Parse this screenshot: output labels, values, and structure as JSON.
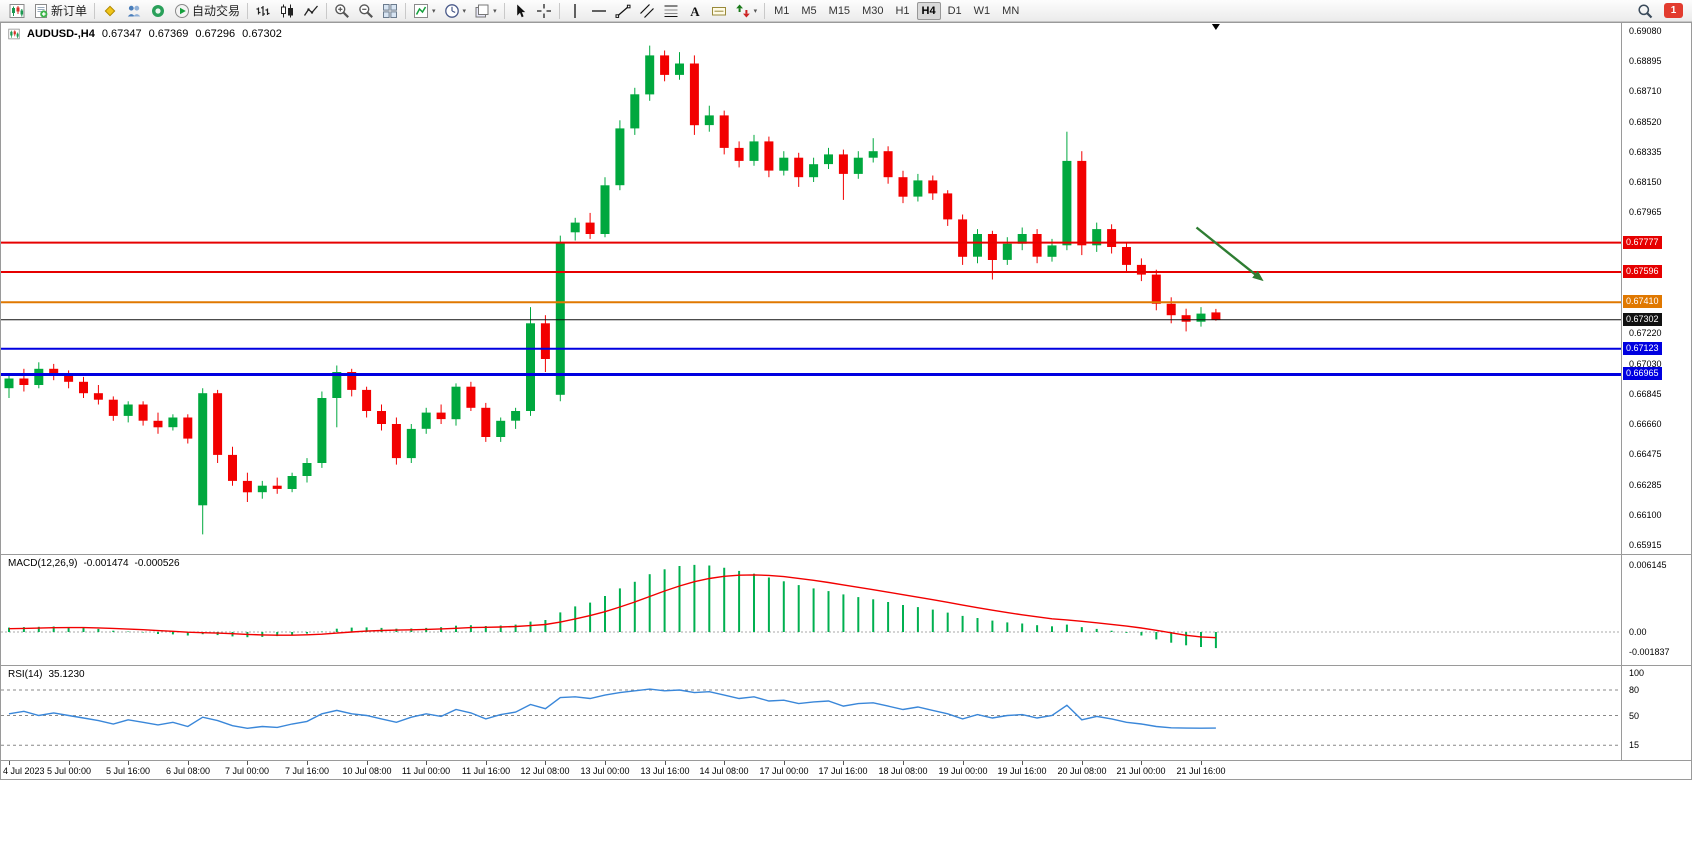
{
  "toolbar": {
    "left_buttons": [
      {
        "name": "new-chart-button",
        "icon": "chart-candle"
      },
      {
        "name": "new-order-button",
        "icon": "order",
        "label": "新订单"
      },
      {
        "separator": true
      },
      {
        "name": "market-watch-button",
        "icon": "diamond"
      },
      {
        "name": "data-window-button",
        "icon": "people"
      },
      {
        "name": "terminal-button",
        "icon": "headset"
      },
      {
        "name": "autotrading-button",
        "icon": "play",
        "label": "自动交易"
      },
      {
        "separator": true
      },
      {
        "name": "bar-chart-button",
        "icon": "bars"
      },
      {
        "name": "candlestick-chart-button",
        "icon": "candles"
      },
      {
        "name": "line-chart-button",
        "icon": "linechart"
      },
      {
        "separator": true
      },
      {
        "name": "zoom-in-button",
        "icon": "zoom-in"
      },
      {
        "name": "zoom-out-button",
        "icon": "zoom-out"
      },
      {
        "name": "tile-windows-button",
        "icon": "tile"
      },
      {
        "separator": true
      },
      {
        "name": "indicators-button",
        "icon": "indicator",
        "dropdown": true
      },
      {
        "name": "periods-button",
        "icon": "clock",
        "dropdown": true
      },
      {
        "name": "templates-button",
        "icon": "template",
        "dropdown": true
      },
      {
        "separator": true
      },
      {
        "name": "cursor-button",
        "icon": "cursor"
      },
      {
        "name": "crosshair-button",
        "icon": "crosshair"
      },
      {
        "separator": true
      },
      {
        "name": "vertical-line-button",
        "icon": "vline"
      },
      {
        "name": "horizontal-line-button",
        "icon": "hline"
      },
      {
        "name": "trendline-button",
        "icon": "trendline"
      },
      {
        "name": "equidistant-channel-button",
        "icon": "channel"
      },
      {
        "name": "fibonacci-retracement-button",
        "icon": "fibo"
      },
      {
        "name": "text-button",
        "icon": "textA"
      },
      {
        "name": "text-label-button",
        "icon": "labeltag"
      },
      {
        "name": "arrows-button",
        "icon": "arrowsobj",
        "dropdown": true
      },
      {
        "separator": true
      }
    ],
    "timeframes": [
      {
        "label": "M1"
      },
      {
        "label": "M5"
      },
      {
        "label": "M15"
      },
      {
        "label": "M30"
      },
      {
        "label": "H1"
      },
      {
        "label": "H4",
        "active": true
      },
      {
        "label": "D1"
      },
      {
        "label": "W1"
      },
      {
        "label": "MN"
      }
    ],
    "right_buttons": [
      {
        "name": "search-button",
        "icon": "search"
      }
    ],
    "notification_count": "1"
  },
  "chart": {
    "symbol_period": "AUDUSD-,H4",
    "ohlc": {
      "open": "0.67347",
      "high": "0.67369",
      "low": "0.67296",
      "close": "0.67302"
    }
  },
  "indicators": {
    "macd_name": "MACD(12,26,9)",
    "macd_main": "-0.001474",
    "macd_signal": "-0.000526",
    "rsi_name": "RSI(14)",
    "rsi_value": "35.1230"
  },
  "chart_data": {
    "type": "candlestick",
    "title": "AUDUSD-,H4",
    "symbol": "AUDUSD-",
    "timeframe": "H4",
    "up_color": "#00a83e",
    "down_color": "#f20000",
    "price_range": {
      "top": 0.6908,
      "bottom": 0.65915
    },
    "price_axis_labels": [
      0.6908,
      0.68895,
      0.6871,
      0.6852,
      0.68335,
      0.6815,
      0.67965,
      0.6722,
      0.6703,
      0.66845,
      0.6666,
      0.66475,
      0.66285,
      0.661,
      0.65915
    ],
    "axis_badges": [
      {
        "text": "0.67777",
        "color": "#e60000"
      },
      {
        "text": "0.67596",
        "color": "#e60000"
      },
      {
        "text": "0.67410",
        "color": "#e07800"
      },
      {
        "text": "0.67302",
        "color": "#111111"
      },
      {
        "text": "0.67123",
        "color": "#0000e0"
      },
      {
        "text": "0.66965",
        "color": "#0000e0"
      }
    ],
    "hlines": [
      {
        "price": 0.67777,
        "color": "#e60000",
        "width": 2
      },
      {
        "price": 0.67596,
        "color": "#e60000",
        "width": 2
      },
      {
        "price": 0.6741,
        "color": "#e07800",
        "width": 2
      },
      {
        "price": 0.67123,
        "color": "#0000e0",
        "width": 2
      },
      {
        "price": 0.66965,
        "color": "#0000e0",
        "width": 3
      }
    ],
    "current_price": {
      "value": 0.67302,
      "color": "#111111"
    },
    "arrow_object": {
      "from_bar": 79.7,
      "from_price": 0.6787,
      "to_bar": 84.2,
      "to_price": 0.6754,
      "color": "#2e7d32"
    },
    "shift_marker_bar": 81,
    "time_labels": [
      "4 Jul 2023",
      "5 Jul 00:00",
      "5 Jul 16:00",
      "6 Jul 08:00",
      "7 Jul 00:00",
      "7 Jul 16:00",
      "10 Jul 08:00",
      "11 Jul 00:00",
      "11 Jul 16:00",
      "12 Jul 08:00",
      "13 Jul 00:00",
      "13 Jul 16:00",
      "14 Jul 08:00",
      "17 Jul 00:00",
      "17 Jul 16:00",
      "18 Jul 08:00",
      "19 Jul 00:00",
      "19 Jul 16:00",
      "20 Jul 08:00",
      "21 Jul 00:00",
      "21 Jul 16:00"
    ],
    "time_label_step": 4,
    "candles": [
      [
        0.6688,
        0.6696,
        0.6682,
        0.6694
      ],
      [
        0.6694,
        0.67,
        0.6686,
        0.669
      ],
      [
        0.669,
        0.6704,
        0.6688,
        0.67
      ],
      [
        0.67,
        0.6703,
        0.6693,
        0.6696
      ],
      [
        0.6696,
        0.6699,
        0.6688,
        0.6692
      ],
      [
        0.6692,
        0.6695,
        0.6682,
        0.6685
      ],
      [
        0.6685,
        0.669,
        0.6678,
        0.6681
      ],
      [
        0.6681,
        0.6683,
        0.6668,
        0.6671
      ],
      [
        0.6671,
        0.668,
        0.6667,
        0.6678
      ],
      [
        0.6678,
        0.668,
        0.6665,
        0.6668
      ],
      [
        0.6668,
        0.6673,
        0.666,
        0.6664
      ],
      [
        0.6664,
        0.6672,
        0.6662,
        0.667
      ],
      [
        0.667,
        0.6672,
        0.6654,
        0.6657
      ],
      [
        0.6616,
        0.6688,
        0.6598,
        0.6685
      ],
      [
        0.6685,
        0.6687,
        0.6642,
        0.6647
      ],
      [
        0.6647,
        0.6652,
        0.6628,
        0.6631
      ],
      [
        0.6631,
        0.6636,
        0.6618,
        0.6624
      ],
      [
        0.6624,
        0.6631,
        0.662,
        0.6628
      ],
      [
        0.6628,
        0.6633,
        0.6623,
        0.6626
      ],
      [
        0.6626,
        0.6636,
        0.6624,
        0.6634
      ],
      [
        0.6634,
        0.6645,
        0.663,
        0.6642
      ],
      [
        0.6642,
        0.6686,
        0.6639,
        0.6682
      ],
      [
        0.6682,
        0.6702,
        0.6664,
        0.6698
      ],
      [
        0.6698,
        0.67,
        0.6683,
        0.6687
      ],
      [
        0.6687,
        0.6689,
        0.667,
        0.6674
      ],
      [
        0.6674,
        0.6678,
        0.6662,
        0.6666
      ],
      [
        0.6666,
        0.667,
        0.6641,
        0.6645
      ],
      [
        0.6645,
        0.6666,
        0.6642,
        0.6663
      ],
      [
        0.6663,
        0.6676,
        0.666,
        0.6673
      ],
      [
        0.6673,
        0.6678,
        0.6666,
        0.6669
      ],
      [
        0.6669,
        0.6691,
        0.6665,
        0.6689
      ],
      [
        0.6689,
        0.6692,
        0.6674,
        0.6676
      ],
      [
        0.6676,
        0.6679,
        0.6655,
        0.6658
      ],
      [
        0.6658,
        0.667,
        0.6655,
        0.6668
      ],
      [
        0.6668,
        0.6676,
        0.6663,
        0.6674
      ],
      [
        0.6674,
        0.6738,
        0.6671,
        0.6728
      ],
      [
        0.6728,
        0.6733,
        0.6698,
        0.6706
      ],
      [
        0.6684,
        0.6782,
        0.668,
        0.6778
      ],
      [
        0.6784,
        0.6793,
        0.6779,
        0.679
      ],
      [
        0.679,
        0.6796,
        0.678,
        0.6783
      ],
      [
        0.6783,
        0.6818,
        0.6781,
        0.6813
      ],
      [
        0.6813,
        0.6853,
        0.681,
        0.6848
      ],
      [
        0.6848,
        0.6873,
        0.6844,
        0.6869
      ],
      [
        0.6869,
        0.6899,
        0.6865,
        0.6893
      ],
      [
        0.6893,
        0.6896,
        0.6877,
        0.6881
      ],
      [
        0.6881,
        0.6895,
        0.6878,
        0.6888
      ],
      [
        0.6888,
        0.6893,
        0.6844,
        0.685
      ],
      [
        0.685,
        0.6862,
        0.6846,
        0.6856
      ],
      [
        0.6856,
        0.6859,
        0.6832,
        0.6836
      ],
      [
        0.6836,
        0.684,
        0.6824,
        0.6828
      ],
      [
        0.6828,
        0.6844,
        0.6825,
        0.684
      ],
      [
        0.684,
        0.6843,
        0.6818,
        0.6822
      ],
      [
        0.6822,
        0.6834,
        0.6819,
        0.683
      ],
      [
        0.683,
        0.6833,
        0.6812,
        0.6818
      ],
      [
        0.6818,
        0.683,
        0.6815,
        0.6826
      ],
      [
        0.6826,
        0.6836,
        0.6823,
        0.6832
      ],
      [
        0.6832,
        0.6835,
        0.6804,
        0.682
      ],
      [
        0.682,
        0.6834,
        0.6817,
        0.683
      ],
      [
        0.683,
        0.6842,
        0.6827,
        0.6834
      ],
      [
        0.6834,
        0.6837,
        0.6814,
        0.6818
      ],
      [
        0.6818,
        0.6822,
        0.6802,
        0.6806
      ],
      [
        0.6806,
        0.682,
        0.6803,
        0.6816
      ],
      [
        0.6816,
        0.6819,
        0.6804,
        0.6808
      ],
      [
        0.6808,
        0.681,
        0.6788,
        0.6792
      ],
      [
        0.6792,
        0.6795,
        0.6764,
        0.6769
      ],
      [
        0.6769,
        0.6786,
        0.6765,
        0.6783
      ],
      [
        0.6783,
        0.6785,
        0.6755,
        0.6767
      ],
      [
        0.6767,
        0.6781,
        0.6764,
        0.6777
      ],
      [
        0.6777,
        0.6787,
        0.6773,
        0.6783
      ],
      [
        0.6783,
        0.6786,
        0.6765,
        0.6769
      ],
      [
        0.6769,
        0.678,
        0.6766,
        0.6776
      ],
      [
        0.6776,
        0.6846,
        0.6773,
        0.6828
      ],
      [
        0.6828,
        0.6834,
        0.677,
        0.6776
      ],
      [
        0.6776,
        0.679,
        0.6772,
        0.6786
      ],
      [
        0.6786,
        0.6789,
        0.6771,
        0.6775
      ],
      [
        0.6775,
        0.6778,
        0.676,
        0.6764
      ],
      [
        0.6764,
        0.6768,
        0.6754,
        0.6758
      ],
      [
        0.6758,
        0.6761,
        0.6736,
        0.674
      ],
      [
        0.674,
        0.6744,
        0.6728,
        0.6733
      ],
      [
        0.6733,
        0.6737,
        0.6723,
        0.6729
      ],
      [
        0.6729,
        0.6738,
        0.6726,
        0.6734
      ],
      [
        0.67347,
        0.67369,
        0.67296,
        0.67302
      ]
    ],
    "macd": {
      "axis_labels": [
        "0.006145",
        "0.00",
        "-0.001837"
      ],
      "axis_values": [
        0.006145,
        0,
        -0.001837
      ],
      "histogram_color": "#00b050",
      "signal_color": "#f20000",
      "values": [
        0.0004,
        0.00045,
        0.00048,
        0.0005,
        0.00045,
        0.00038,
        0.00028,
        0.00012,
        5e-05,
        -5e-05,
        -0.00018,
        -0.00022,
        -0.00032,
        -0.0002,
        -0.00028,
        -0.0004,
        -0.00048,
        -0.00045,
        -0.00038,
        -0.00028,
        -0.00015,
        5e-05,
        0.0003,
        0.0004,
        0.00042,
        0.00038,
        0.0003,
        0.00032,
        0.00038,
        0.00044,
        0.00058,
        0.00062,
        0.00055,
        0.0006,
        0.00068,
        0.00095,
        0.0011,
        0.0018,
        0.00235,
        0.0027,
        0.0033,
        0.004,
        0.0046,
        0.0053,
        0.00575,
        0.00605,
        0.00615,
        0.0061,
        0.0059,
        0.0056,
        0.00535,
        0.005,
        0.00465,
        0.0043,
        0.004,
        0.00375,
        0.00345,
        0.0032,
        0.003,
        0.00275,
        0.00248,
        0.00228,
        0.00205,
        0.00178,
        0.00148,
        0.00128,
        0.00105,
        0.00088,
        0.00078,
        0.00062,
        0.00052,
        0.00068,
        0.00045,
        0.00028,
        0.00012,
        -8e-05,
        -0.00032,
        -0.00068,
        -0.00098,
        -0.00122,
        -0.00138,
        -0.001474
      ],
      "signal": [
        0.0003,
        0.00033,
        0.00036,
        0.00039,
        0.0004,
        0.0004,
        0.00038,
        0.00033,
        0.00027,
        0.00021,
        0.00013,
        6e-05,
        -2e-05,
        -6e-05,
        -0.0001,
        -0.00016,
        -0.00022,
        -0.00027,
        -0.00029,
        -0.00029,
        -0.00026,
        -0.0002,
        -0.0001,
        0.0,
        8e-05,
        0.00014,
        0.00017,
        0.0002,
        0.00024,
        0.00028,
        0.00034,
        0.0004,
        0.00043,
        0.00046,
        0.0005,
        0.00059,
        0.00069,
        0.00091,
        0.0012,
        0.0015,
        0.00186,
        0.00229,
        0.00275,
        0.00326,
        0.00376,
        0.00422,
        0.00461,
        0.00491,
        0.00511,
        0.00521,
        0.00524,
        0.00519,
        0.00508,
        0.00492,
        0.00474,
        0.00454,
        0.00432,
        0.0041,
        0.00388,
        0.00365,
        0.00342,
        0.00319,
        0.00296,
        0.00272,
        0.00247,
        0.00223,
        0.002,
        0.00178,
        0.00158,
        0.00139,
        0.00121,
        0.00111,
        0.00098,
        0.00084,
        0.0007,
        0.00054,
        0.00037,
        0.00016,
        -7e-05,
        -0.0003,
        -0.00045,
        -0.000526
      ]
    },
    "rsi": {
      "period": 14,
      "axis_labels": [
        "100",
        "80",
        "50",
        "15"
      ],
      "axis_values": [
        100,
        80,
        50,
        15
      ],
      "levels": [
        80,
        50,
        15
      ],
      "line_color": "#3a87d9",
      "values": [
        52,
        55,
        50,
        53,
        50,
        47,
        44,
        40,
        45,
        42,
        39,
        42,
        37,
        48,
        44,
        38,
        35,
        37,
        36,
        40,
        43,
        52,
        56,
        52,
        50,
        46,
        42,
        48,
        52,
        49,
        57,
        53,
        46,
        51,
        54,
        63,
        58,
        71,
        72,
        70,
        74,
        77,
        79,
        81,
        79,
        80,
        77,
        78,
        74,
        70,
        72,
        67,
        68,
        64,
        66,
        67,
        61,
        64,
        65,
        61,
        57,
        60,
        56,
        52,
        46,
        51,
        47,
        50,
        51,
        47,
        50,
        62,
        45,
        49,
        46,
        42,
        40,
        37,
        35.5,
        35.2,
        35.1,
        35.123
      ]
    }
  }
}
